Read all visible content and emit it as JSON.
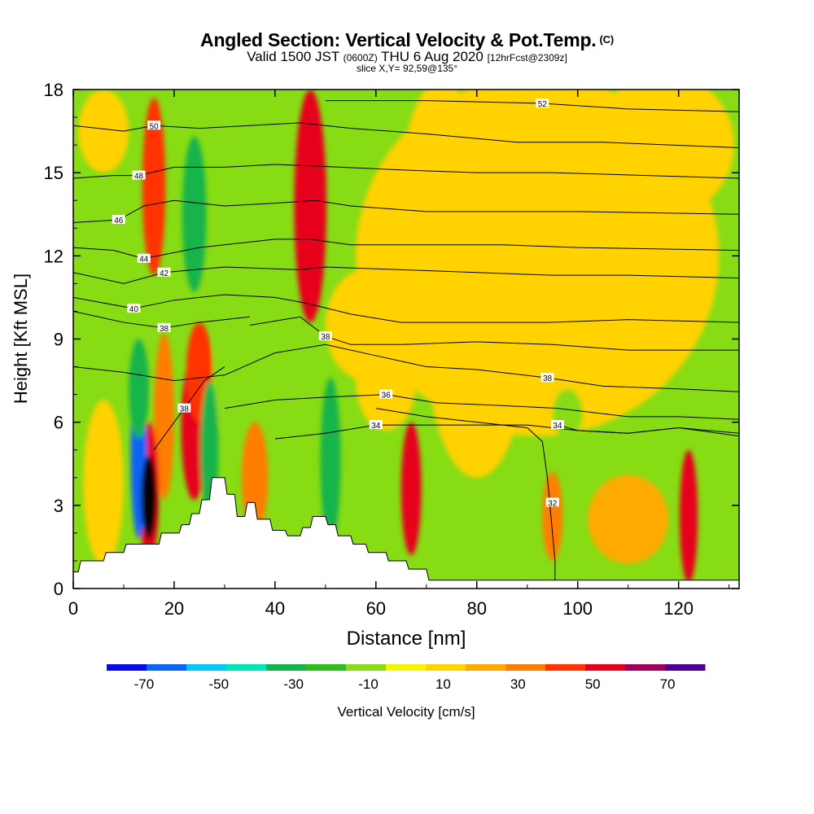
{
  "header": {
    "title": "Angled Section: Vertical Velocity & Pot.Temp.",
    "title_unit": "(C)",
    "valid_main": "Valid 1500 JST",
    "valid_zulu": "(0600Z)",
    "valid_date": "THU 6 Aug 2020",
    "forecast": "[12hrFcst@2309z]",
    "slice": "slice X,Y= 92,59@135°"
  },
  "chart_data": {
    "type": "heatmap",
    "xlabel": "Distance [nm]",
    "ylabel": "Height [Kft MSL]",
    "xlim": [
      0,
      132
    ],
    "ylim": [
      0,
      18
    ],
    "x_ticks": [
      0,
      20,
      40,
      60,
      80,
      100,
      120
    ],
    "y_ticks": [
      0,
      3,
      6,
      9,
      12,
      15,
      18
    ],
    "colorbar": {
      "label": "Vertical Velocity [cm/s]",
      "levels": [
        -80,
        -70,
        -60,
        -50,
        -40,
        -30,
        -20,
        -10,
        0,
        10,
        20,
        30,
        40,
        50,
        60,
        70,
        80
      ],
      "tick_values": [
        -70,
        -50,
        -30,
        -10,
        10,
        30,
        50,
        70
      ],
      "colors": [
        "#0a0af0",
        "#0b64f5",
        "#00c8fa",
        "#00e6b4",
        "#14b44b",
        "#2dbe1e",
        "#87dc14",
        "#f5f500",
        "#ffd200",
        "#ffaa00",
        "#ff7d00",
        "#ff3200",
        "#e6001e",
        "#a0005a",
        "#500096"
      ]
    },
    "background_fill": "#87dc14",
    "terrain_heights": [
      [
        0,
        0.6
      ],
      [
        1,
        0.6
      ],
      [
        1.5,
        1.0
      ],
      [
        6,
        1.0
      ],
      [
        6.5,
        1.3
      ],
      [
        10,
        1.3
      ],
      [
        10.5,
        1.6
      ],
      [
        17,
        1.6
      ],
      [
        17.5,
        2.0
      ],
      [
        21,
        2.0
      ],
      [
        21.5,
        2.3
      ],
      [
        23,
        2.3
      ],
      [
        23.5,
        2.7
      ],
      [
        25,
        2.7
      ],
      [
        25.5,
        3.2
      ],
      [
        27,
        3.2
      ],
      [
        27.5,
        4.0
      ],
      [
        30,
        4.0
      ],
      [
        30.5,
        3.4
      ],
      [
        32,
        3.4
      ],
      [
        32.5,
        2.6
      ],
      [
        34,
        2.6
      ],
      [
        34.5,
        3.1
      ],
      [
        36,
        3.1
      ],
      [
        36.5,
        2.5
      ],
      [
        39,
        2.5
      ],
      [
        39.5,
        2.1
      ],
      [
        42,
        2.1
      ],
      [
        42.5,
        1.9
      ],
      [
        45,
        1.9
      ],
      [
        45.5,
        2.2
      ],
      [
        47,
        2.2
      ],
      [
        47.5,
        2.6
      ],
      [
        50,
        2.6
      ],
      [
        50.5,
        2.3
      ],
      [
        52,
        2.3
      ],
      [
        52.5,
        1.9
      ],
      [
        55,
        1.9
      ],
      [
        55.5,
        1.6
      ],
      [
        58,
        1.6
      ],
      [
        58.5,
        1.3
      ],
      [
        62,
        1.3
      ],
      [
        62.5,
        1.0
      ],
      [
        66,
        1.0
      ],
      [
        66.5,
        0.7
      ],
      [
        70,
        0.7
      ],
      [
        70.5,
        0.3
      ],
      [
        132,
        0.3
      ]
    ],
    "vertical_velocity_cells": [
      {
        "x": 15,
        "y": 3.3,
        "rx": 1.5,
        "ry": 1.5,
        "value": 75
      },
      {
        "x": 15,
        "y": 3.5,
        "rx": 2.0,
        "ry": 2.5,
        "value": 45
      },
      {
        "x": 13,
        "y": 4.8,
        "rx": 1.6,
        "ry": 3.0,
        "value": -65
      },
      {
        "x": 13,
        "y": 7.2,
        "rx": 2.0,
        "ry": 1.8,
        "value": -40
      },
      {
        "x": 18,
        "y": 6.2,
        "rx": 2.0,
        "ry": 3.0,
        "value": 20
      },
      {
        "x": 24,
        "y": 5.8,
        "rx": 2.6,
        "ry": 2.6,
        "value": 45
      },
      {
        "x": 25,
        "y": 7.8,
        "rx": 2.6,
        "ry": 1.8,
        "value": 30
      },
      {
        "x": 27,
        "y": 5.0,
        "rx": 1.8,
        "ry": 2.5,
        "value": -40
      },
      {
        "x": 30,
        "y": 8.2,
        "rx": 2.2,
        "ry": 2.6,
        "value": -20
      },
      {
        "x": 16,
        "y": 14.5,
        "rx": 2.3,
        "ry": 3.2,
        "value": 30
      },
      {
        "x": 24,
        "y": 13.5,
        "rx": 2.4,
        "ry": 2.8,
        "value": -35
      },
      {
        "x": 36,
        "y": 4.0,
        "rx": 2.6,
        "ry": 2.0,
        "value": 25
      },
      {
        "x": 47,
        "y": 13.8,
        "rx": 3.2,
        "ry": 4.2,
        "value": 40
      },
      {
        "x": 51,
        "y": 4.6,
        "rx": 2.0,
        "ry": 3.0,
        "value": -40
      },
      {
        "x": 67,
        "y": 3.6,
        "rx": 2.0,
        "ry": 2.4,
        "value": 40
      },
      {
        "x": 95,
        "y": 2.6,
        "rx": 2.0,
        "ry": 1.6,
        "value": 25
      },
      {
        "x": 98,
        "y": 6.3,
        "rx": 3.0,
        "ry": 0.9,
        "value": -20
      },
      {
        "x": 122,
        "y": 2.6,
        "rx": 1.8,
        "ry": 2.4,
        "value": 45
      },
      {
        "x": 110,
        "y": 2.5,
        "rx": 8.0,
        "ry": 1.6,
        "value": 10
      },
      {
        "x": 92,
        "y": 12,
        "rx": 36,
        "ry": 6.5,
        "value": 5
      },
      {
        "x": 80,
        "y": 9,
        "rx": 10,
        "ry": 5,
        "value": 5
      },
      {
        "x": 73,
        "y": 15.5,
        "rx": 7,
        "ry": 2.8,
        "value": 5
      },
      {
        "x": 62,
        "y": 7.5,
        "rx": 6,
        "ry": 1.8,
        "value": 5
      },
      {
        "x": 117,
        "y": 16,
        "rx": 14,
        "ry": 2.6,
        "value": 5
      },
      {
        "x": 58,
        "y": 9.5,
        "rx": 8,
        "ry": 2.0,
        "value": 5
      },
      {
        "x": 6,
        "y": 3.8,
        "rx": 4,
        "ry": 3,
        "value": 5
      },
      {
        "x": 6,
        "y": 16.5,
        "rx": 5,
        "ry": 1.5,
        "value": 5
      }
    ],
    "theta_contours": [
      {
        "label": "32",
        "label_at": [
          95,
          3.1
        ],
        "points": [
          [
            95.5,
            0
          ],
          [
            95.5,
            1
          ],
          [
            95,
            2
          ],
          [
            94.5,
            3
          ],
          [
            94,
            4
          ],
          [
            93,
            5.3
          ],
          [
            90,
            5.8
          ],
          [
            80,
            6.0
          ],
          [
            70,
            6.2
          ],
          [
            60,
            6.5
          ]
        ]
      },
      {
        "label": "34",
        "label_at": [
          60,
          5.9
        ],
        "points": [
          [
            40,
            5.4
          ],
          [
            50,
            5.6
          ],
          [
            60,
            5.9
          ],
          [
            70,
            5.9
          ],
          [
            80,
            5.9
          ],
          [
            90,
            5.9
          ],
          [
            100,
            5.7
          ],
          [
            110,
            5.6
          ],
          [
            120,
            5.8
          ],
          [
            132,
            5.5
          ]
        ]
      },
      {
        "label": "34",
        "label_at": [
          96,
          5.9
        ],
        "points": [
          [
            96,
            5.9
          ],
          [
            100,
            5.7
          ],
          [
            110,
            5.6
          ],
          [
            120,
            5.8
          ],
          [
            132,
            5.6
          ]
        ]
      },
      {
        "label": "36",
        "label_at": [
          62,
          7.0
        ],
        "points": [
          [
            30,
            6.5
          ],
          [
            40,
            6.8
          ],
          [
            50,
            6.9
          ],
          [
            62,
            7.0
          ],
          [
            72,
            6.7
          ],
          [
            85,
            6.6
          ],
          [
            96,
            6.5
          ],
          [
            110,
            6.2
          ],
          [
            120,
            6.2
          ],
          [
            132,
            6.1
          ]
        ]
      },
      {
        "label": "38",
        "label_at": [
          94,
          7.6
        ],
        "points": [
          [
            0,
            8.0
          ],
          [
            10,
            7.8
          ],
          [
            20,
            7.5
          ],
          [
            30,
            7.7
          ],
          [
            40,
            8.5
          ],
          [
            50,
            8.8
          ],
          [
            60,
            8.4
          ],
          [
            70,
            8.0
          ],
          [
            80,
            7.9
          ],
          [
            94,
            7.6
          ],
          [
            105,
            7.3
          ],
          [
            120,
            7.2
          ],
          [
            132,
            7.1
          ]
        ]
      },
      {
        "label": "38",
        "label_at": [
          22,
          6.5
        ],
        "points": [
          [
            16,
            5.0
          ],
          [
            20,
            6.0
          ],
          [
            22,
            6.5
          ],
          [
            26,
            7.5
          ],
          [
            30,
            8.0
          ]
        ]
      },
      {
        "label": "38",
        "label_at": [
          50,
          9.1
        ],
        "points": [
          [
            35,
            9.5
          ],
          [
            45,
            9.8
          ],
          [
            50,
            9.1
          ],
          [
            55,
            8.8
          ],
          [
            65,
            8.8
          ],
          [
            80,
            8.9
          ],
          [
            95,
            8.8
          ],
          [
            110,
            8.6
          ],
          [
            132,
            8.6
          ]
        ]
      },
      {
        "label": "38",
        "label_at": [
          18,
          9.4
        ],
        "points": [
          [
            0,
            10.0
          ],
          [
            10,
            9.6
          ],
          [
            18,
            9.4
          ],
          [
            25,
            9.6
          ],
          [
            35,
            9.8
          ]
        ]
      },
      {
        "label": "40",
        "label_at": [
          12,
          10.1
        ],
        "points": [
          [
            0,
            10.5
          ],
          [
            12,
            10.1
          ],
          [
            20,
            10.4
          ],
          [
            30,
            10.6
          ],
          [
            40,
            10.5
          ],
          [
            46,
            10.3
          ],
          [
            55,
            9.9
          ],
          [
            65,
            9.6
          ],
          [
            80,
            9.6
          ],
          [
            94,
            9.6
          ],
          [
            110,
            9.7
          ],
          [
            132,
            9.6
          ]
        ]
      },
      {
        "label": "42",
        "label_at": [
          18,
          11.4
        ],
        "points": [
          [
            0,
            11.4
          ],
          [
            10,
            11.0
          ],
          [
            18,
            11.4
          ],
          [
            30,
            11.6
          ],
          [
            45,
            11.5
          ],
          [
            50,
            11.6
          ],
          [
            65,
            11.5
          ],
          [
            80,
            11.4
          ],
          [
            95,
            11.3
          ],
          [
            110,
            11.3
          ],
          [
            132,
            11.2
          ]
        ]
      },
      {
        "label": "44",
        "label_at": [
          14,
          11.9
        ],
        "points": [
          [
            0,
            12.3
          ],
          [
            8,
            12.2
          ],
          [
            14,
            11.9
          ],
          [
            25,
            12.3
          ],
          [
            40,
            12.6
          ],
          [
            47,
            12.6
          ],
          [
            55,
            12.4
          ],
          [
            70,
            12.4
          ],
          [
            85,
            12.4
          ],
          [
            100,
            12.3
          ],
          [
            132,
            12.2
          ]
        ]
      },
      {
        "label": "46",
        "label_at": [
          9,
          13.3
        ],
        "points": [
          [
            0,
            13.2
          ],
          [
            9,
            13.3
          ],
          [
            14,
            13.8
          ],
          [
            20,
            14.0
          ],
          [
            30,
            13.8
          ],
          [
            40,
            13.9
          ],
          [
            48,
            14.0
          ],
          [
            55,
            13.8
          ],
          [
            70,
            13.6
          ],
          [
            85,
            13.6
          ],
          [
            100,
            13.6
          ],
          [
            132,
            13.5
          ]
        ]
      },
      {
        "label": "48",
        "label_at": [
          13,
          14.9
        ],
        "points": [
          [
            0,
            14.8
          ],
          [
            8,
            14.9
          ],
          [
            13,
            14.9
          ],
          [
            20,
            15.2
          ],
          [
            30,
            15.2
          ],
          [
            40,
            15.3
          ],
          [
            53,
            15.2
          ],
          [
            65,
            15.1
          ],
          [
            80,
            15.0
          ],
          [
            95,
            15.0
          ],
          [
            132,
            14.8
          ]
        ]
      },
      {
        "label": "50",
        "label_at": [
          16,
          16.7
        ],
        "points": [
          [
            0,
            16.7
          ],
          [
            10,
            16.5
          ],
          [
            16,
            16.7
          ],
          [
            25,
            16.6
          ],
          [
            35,
            16.7
          ],
          [
            45,
            16.8
          ],
          [
            55,
            16.6
          ],
          [
            70,
            16.4
          ],
          [
            88,
            16.1
          ],
          [
            105,
            16.1
          ],
          [
            132,
            15.9
          ]
        ]
      },
      {
        "label": "52",
        "label_at": [
          93,
          17.5
        ],
        "points": [
          [
            50,
            17.6
          ],
          [
            70,
            17.6
          ],
          [
            93,
            17.5
          ],
          [
            110,
            17.3
          ],
          [
            132,
            17.2
          ]
        ]
      }
    ]
  }
}
